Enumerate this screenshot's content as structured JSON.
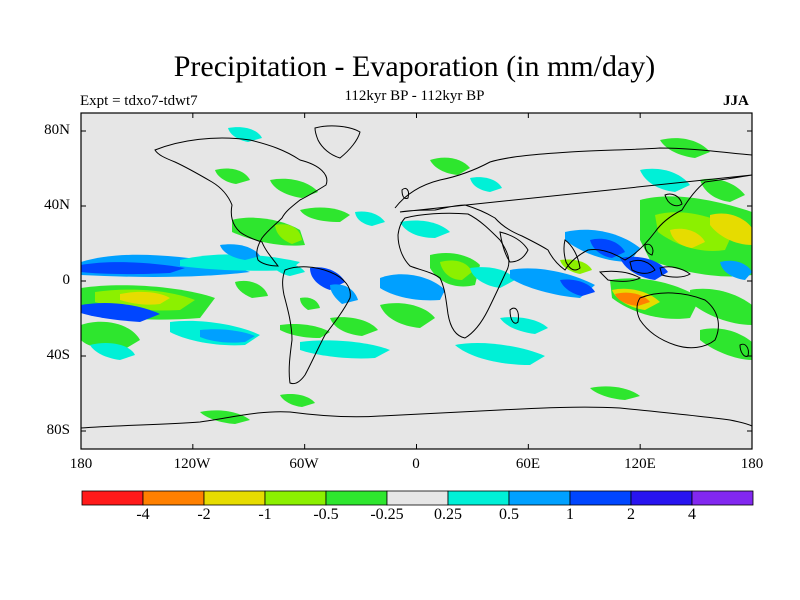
{
  "title": "Precipitation - Evaporation (in mm/day)",
  "subtitle": "112kyr BP - 112kyr BP",
  "left_label": "Expt = tdxo7-tdwt7",
  "right_label": "JJA",
  "map": {
    "lat_ticks": [
      "80N",
      "40N",
      "0",
      "40S",
      "80S"
    ],
    "lon_ticks": [
      "180",
      "120W",
      "60W",
      "0",
      "60E",
      "120E",
      "180"
    ],
    "background_color": "#e6e6e6"
  },
  "colorbar": {
    "labels": [
      "-4",
      "-2",
      "-1",
      "-0.5",
      "-0.25",
      "0.25",
      "0.5",
      "1",
      "2",
      "4"
    ],
    "colors": [
      "#ff1a1a",
      "#ff8000",
      "#e6dc00",
      "#8cf000",
      "#2ee62e",
      "#e6e6e6",
      "#00f0d7",
      "#00a0ff",
      "#0046ff",
      "#2814f0",
      "#8228f0"
    ]
  },
  "colors": {
    "green": "#2ee62e",
    "lightgreen": "#8cf000",
    "cyan": "#00f0d7",
    "lightblue": "#00a0ff",
    "blue": "#0046ff",
    "yellow": "#e6dc00",
    "orange": "#ff8000"
  }
}
